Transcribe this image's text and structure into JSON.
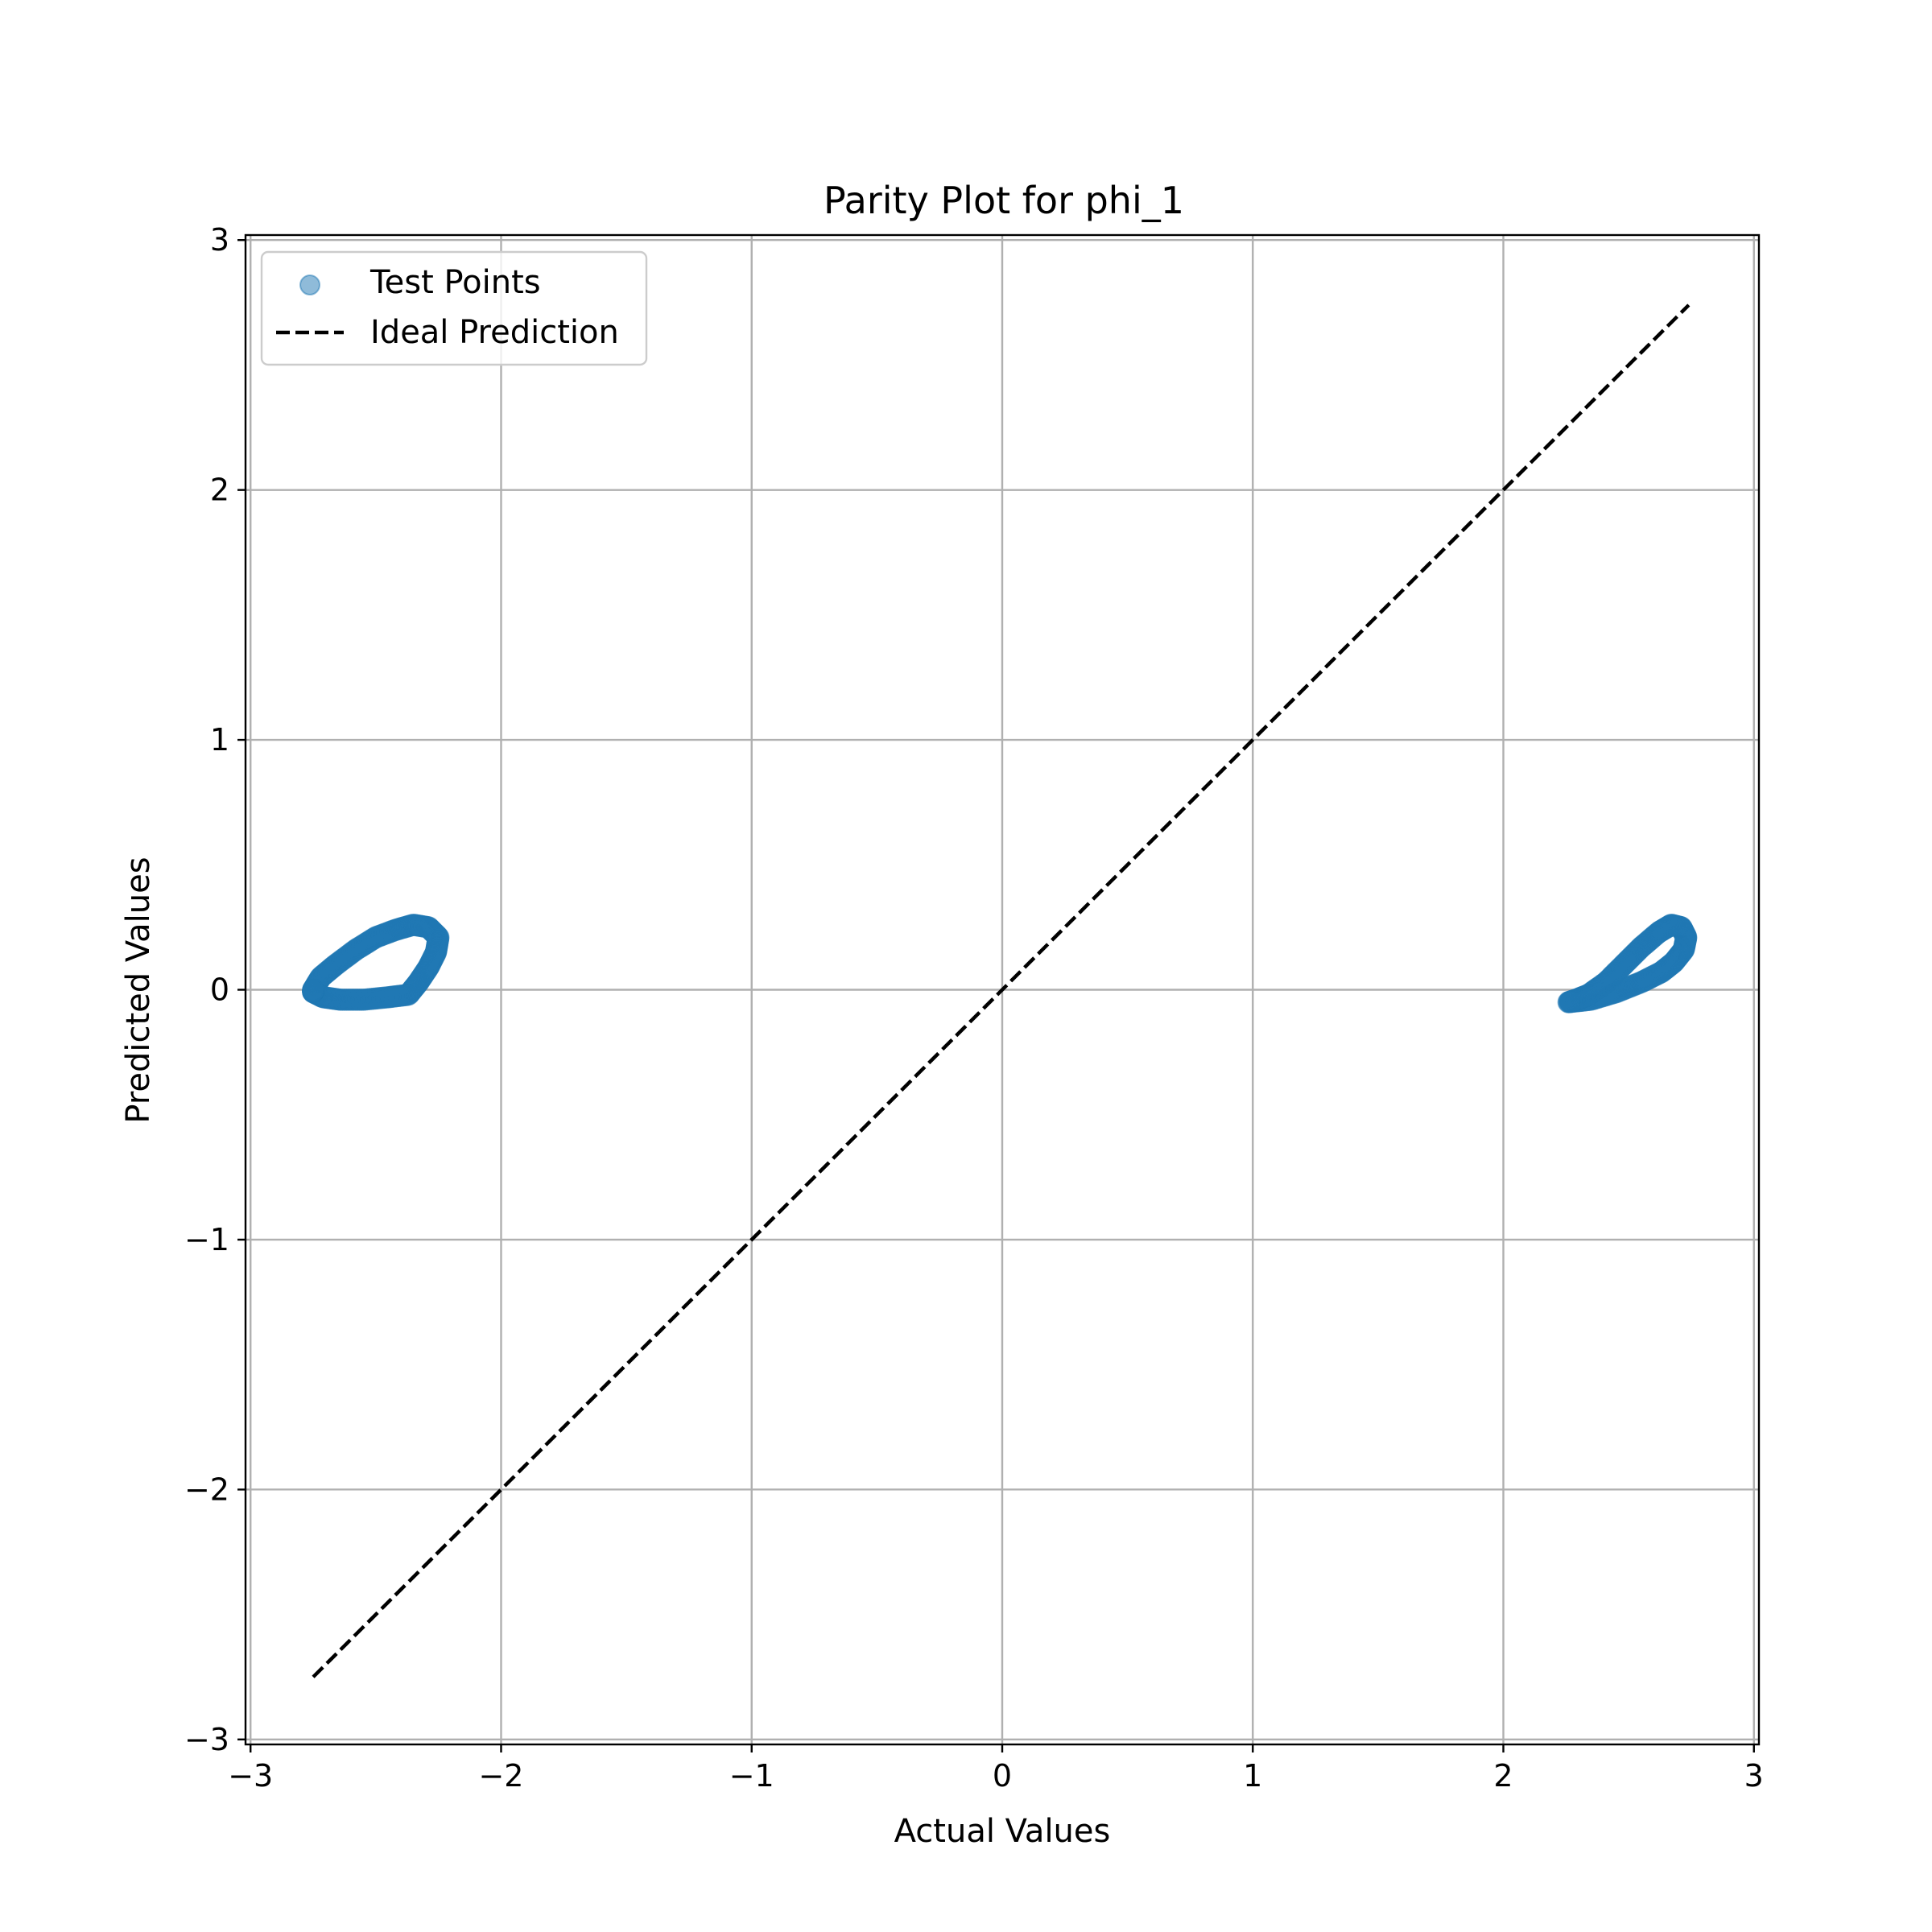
{
  "chart_data": {
    "type": "scatter",
    "title": "Parity Plot for phi_1",
    "xlabel": "Actual Values",
    "ylabel": "Predicted Values",
    "xlim": [
      -3.02,
      3.02
    ],
    "ylim": [
      -3.02,
      3.02
    ],
    "xticks": [
      -3,
      -2,
      -1,
      0,
      1,
      2,
      3
    ],
    "yticks": [
      -3,
      -2,
      -1,
      0,
      1,
      2,
      3
    ],
    "xtick_labels": [
      "−3",
      "−2",
      "−1",
      "0",
      "1",
      "2",
      "3"
    ],
    "ytick_labels": [
      "−3",
      "−2",
      "−1",
      "0",
      "1",
      "2",
      "3"
    ],
    "grid": true,
    "legend_position": "upper-left",
    "series": [
      {
        "name": "Test Points",
        "kind": "scatter",
        "color": "#1f77b4",
        "alpha": 0.5,
        "loops": [
          {
            "points": [
              [
                -2.75,
                0.0
              ],
              [
                -2.72,
                0.05
              ],
              [
                -2.66,
                0.1
              ],
              [
                -2.58,
                0.16
              ],
              [
                -2.5,
                0.21
              ],
              [
                -2.42,
                0.24
              ],
              [
                -2.35,
                0.26
              ],
              [
                -2.29,
                0.25
              ],
              [
                -2.25,
                0.21
              ],
              [
                -2.26,
                0.15
              ],
              [
                -2.29,
                0.09
              ],
              [
                -2.33,
                0.03
              ],
              [
                -2.37,
                -0.02
              ],
              [
                -2.45,
                -0.03
              ],
              [
                -2.55,
                -0.04
              ],
              [
                -2.64,
                -0.04
              ],
              [
                -2.71,
                -0.03
              ],
              [
                -2.75,
                -0.01
              ],
              [
                -2.75,
                0.0
              ]
            ]
          },
          {
            "points": [
              [
                2.26,
                -0.05
              ],
              [
                2.35,
                -0.04
              ],
              [
                2.45,
                -0.01
              ],
              [
                2.55,
                0.03
              ],
              [
                2.63,
                0.07
              ],
              [
                2.68,
                0.11
              ],
              [
                2.72,
                0.16
              ],
              [
                2.73,
                0.21
              ],
              [
                2.71,
                0.25
              ],
              [
                2.67,
                0.26
              ],
              [
                2.62,
                0.23
              ],
              [
                2.55,
                0.17
              ],
              [
                2.48,
                0.1
              ],
              [
                2.41,
                0.03
              ],
              [
                2.34,
                -0.02
              ],
              [
                2.29,
                -0.04
              ],
              [
                2.26,
                -0.05
              ]
            ]
          }
        ]
      },
      {
        "name": "Ideal Prediction",
        "kind": "line",
        "style": "dashed",
        "color": "#000000",
        "x": [
          -2.75,
          2.74
        ],
        "y": [
          -2.75,
          2.74
        ]
      }
    ]
  }
}
